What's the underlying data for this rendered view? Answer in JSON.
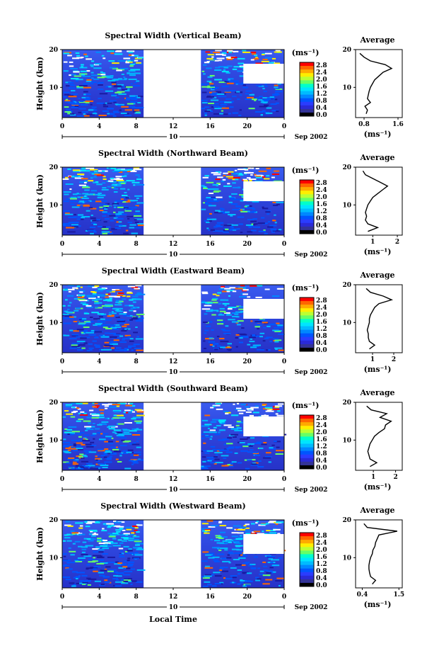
{
  "chart_data": {
    "type": "heatmap",
    "xlabel": "Local Time",
    "date_label": "Sep 2002",
    "x_ticks": [
      "0",
      "4",
      "8",
      "12",
      "16",
      "20",
      "0"
    ],
    "x_range_hours": [
      0,
      24
    ],
    "day_marker": "10",
    "gap_hours": [
      8.8,
      15.0
    ],
    "ylabel": "Height (km)",
    "y_ticks": [
      "10",
      "20"
    ],
    "y_range_km": [
      2,
      20
    ],
    "colorbar": {
      "unit": "(ms⁻¹)",
      "labels": [
        "2.8",
        "2.4",
        "2.0",
        "1.6",
        "1.2",
        "0.8",
        "0.4",
        "0.0"
      ],
      "colors": [
        "#ff0000",
        "#ff6600",
        "#ffaa00",
        "#ffee00",
        "#bbff33",
        "#66ff66",
        "#00ffcc",
        "#00e5ff",
        "#00bbff",
        "#0088ff",
        "#0055ff",
        "#2a3dff",
        "#2a2ad8",
        "#333399",
        "#000000"
      ]
    },
    "panels": [
      {
        "title": "Spectral Width (Vertical Beam)",
        "profile_title": "Average",
        "profile_xlabel": "(ms⁻¹)",
        "profile_xticks": [
          "0.8",
          "1.6"
        ],
        "profile_xlim": [
          0.6,
          1.7
        ],
        "profile": {
          "height_km": [
            3,
            4,
            5,
            6,
            7,
            8,
            9,
            10,
            11,
            12,
            13,
            14,
            15,
            16,
            17,
            18,
            19
          ],
          "width": [
            0.85,
            0.88,
            0.82,
            0.95,
            0.88,
            0.9,
            0.92,
            0.95,
            1.0,
            1.05,
            1.15,
            1.25,
            1.45,
            1.3,
            0.95,
            0.8,
            0.7
          ]
        }
      },
      {
        "title": "Spectral Width (Northward Beam)",
        "profile_title": "Average",
        "profile_xlabel": "(ms⁻¹)",
        "profile_xticks": [
          "1",
          "2"
        ],
        "profile_xlim": [
          0.3,
          2.2
        ],
        "profile": {
          "height_km": [
            3,
            4,
            5,
            6,
            7,
            8,
            9,
            10,
            11,
            12,
            13,
            14,
            15,
            16,
            17,
            18,
            19
          ],
          "width": [
            0.8,
            1.2,
            0.8,
            0.7,
            0.75,
            0.7,
            0.75,
            0.8,
            0.9,
            1.0,
            1.2,
            1.4,
            1.6,
            1.3,
            1.0,
            0.7,
            0.6
          ]
        }
      },
      {
        "title": "Spectral Width (Eastward Beam)",
        "profile_title": "Average",
        "profile_xlabel": "(ms⁻¹)",
        "profile_xticks": [
          "1",
          "2"
        ],
        "profile_xlim": [
          0.2,
          2.4
        ],
        "profile": {
          "height_km": [
            3,
            4,
            5,
            6,
            7,
            8,
            9,
            10,
            11,
            12,
            13,
            14,
            15,
            16,
            17,
            18,
            19
          ],
          "width": [
            0.85,
            1.1,
            0.85,
            0.8,
            0.8,
            0.75,
            0.8,
            0.85,
            0.85,
            0.9,
            1.0,
            1.1,
            1.3,
            1.9,
            1.5,
            0.9,
            0.7
          ]
        }
      },
      {
        "title": "Spectral Width (Southward Beam)",
        "profile_title": "Average",
        "profile_xlabel": "(ms⁻¹)",
        "profile_xticks": [
          "1",
          "2"
        ],
        "profile_xlim": [
          0.2,
          2.3
        ],
        "profile": {
          "height_km": [
            3,
            4,
            5,
            6,
            7,
            8,
            9,
            10,
            11,
            12,
            13,
            14,
            15,
            16,
            17,
            18,
            19
          ],
          "width": [
            0.85,
            1.15,
            0.85,
            0.8,
            0.75,
            0.8,
            0.85,
            0.95,
            1.05,
            1.25,
            1.5,
            1.55,
            1.8,
            1.3,
            1.6,
            0.9,
            0.7
          ]
        }
      },
      {
        "title": "Spectral Width (Westward Beam)",
        "profile_title": "Average",
        "profile_xlabel": "(ms⁻¹)",
        "profile_xticks": [
          "0.4",
          "1.5"
        ],
        "profile_xlim": [
          0.2,
          1.6
        ],
        "profile": {
          "height_km": [
            3,
            4,
            5,
            6,
            7,
            8,
            9,
            10,
            11,
            12,
            13,
            14,
            15,
            16,
            17,
            18,
            19
          ],
          "width": [
            0.7,
            0.8,
            0.65,
            0.62,
            0.6,
            0.6,
            0.62,
            0.65,
            0.7,
            0.72,
            0.78,
            0.8,
            0.85,
            0.9,
            1.45,
            0.55,
            0.45
          ]
        }
      }
    ]
  }
}
